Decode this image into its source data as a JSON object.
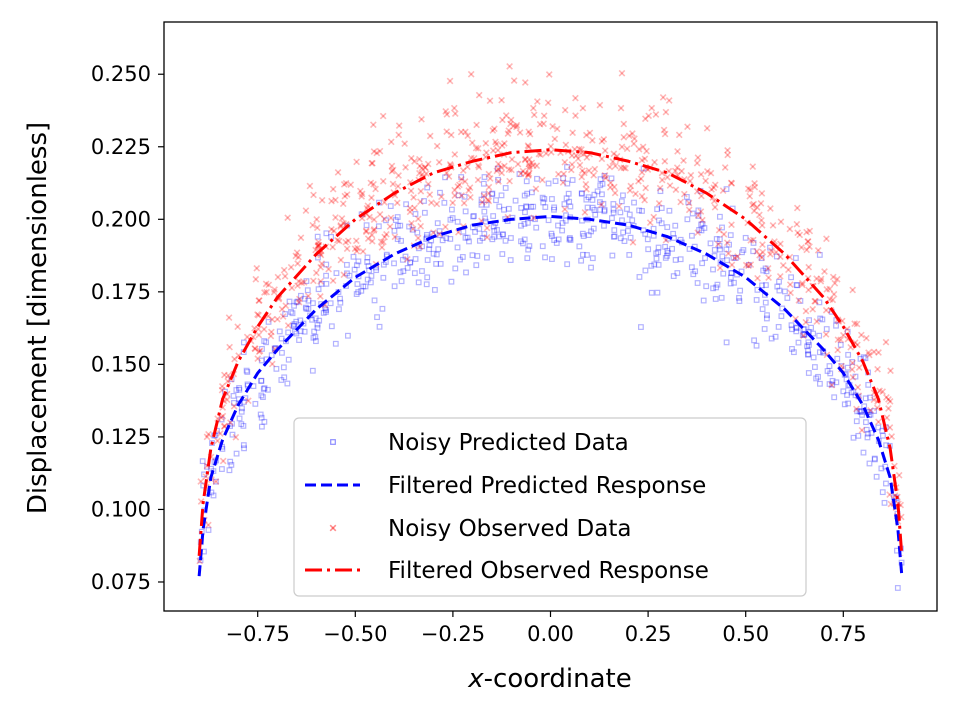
{
  "chart_data": {
    "type": "scatter",
    "title": "",
    "xlabel_italic": "x",
    "xlabel_rest": "-coordinate",
    "ylabel": "Displacement [dimensionless]",
    "xlim": [
      -0.99,
      0.99
    ],
    "ylim": [
      0.065,
      0.268
    ],
    "x_ticks": [
      -0.75,
      -0.5,
      -0.25,
      0.0,
      0.25,
      0.5,
      0.75
    ],
    "x_tick_labels": [
      "−0.75",
      "−0.50",
      "−0.25",
      "0.00",
      "0.25",
      "0.50",
      "0.75"
    ],
    "y_ticks": [
      0.075,
      0.1,
      0.125,
      0.15,
      0.175,
      0.2,
      0.225,
      0.25
    ],
    "y_tick_labels": [
      "0.075",
      "0.100",
      "0.125",
      "0.150",
      "0.175",
      "0.200",
      "0.225",
      "0.250"
    ],
    "grid": false,
    "legend_position": "lower-center",
    "series": [
      {
        "name": "Noisy Predicted Data",
        "kind": "scatter",
        "marker": "s",
        "color": "#0000ff",
        "alpha": 0.3,
        "curve": {
          "x_min": -0.9,
          "x_max": 0.9,
          "peak": 0.201,
          "end": 0.077
        },
        "noise_std": 0.009,
        "n_points": 700,
        "seed": 11
      },
      {
        "name": "Filtered Predicted Response",
        "kind": "line",
        "style": "dashed",
        "color": "#0000ff",
        "x": [
          -0.9,
          -0.89,
          -0.87,
          -0.84,
          -0.8,
          -0.75,
          -0.7,
          -0.6,
          -0.5,
          -0.4,
          -0.3,
          -0.2,
          -0.1,
          0.0,
          0.1,
          0.2,
          0.3,
          0.4,
          0.5,
          0.6,
          0.7,
          0.75,
          0.8,
          0.84,
          0.87,
          0.89,
          0.9
        ],
        "y": [
          0.077,
          0.093,
          0.111,
          0.124,
          0.136,
          0.147,
          0.155,
          0.169,
          0.18,
          0.188,
          0.194,
          0.198,
          0.2,
          0.201,
          0.2,
          0.198,
          0.194,
          0.188,
          0.18,
          0.169,
          0.155,
          0.147,
          0.136,
          0.124,
          0.111,
          0.093,
          0.077
        ]
      },
      {
        "name": "Noisy Observed Data",
        "kind": "scatter",
        "marker": "x",
        "color": "#ff0000",
        "alpha": 0.28,
        "curve": {
          "x_min": -0.9,
          "x_max": 0.9,
          "peak": 0.224,
          "end": 0.084
        },
        "noise_std": 0.011,
        "n_points": 700,
        "seed": 29
      },
      {
        "name": "Filtered Observed Response",
        "kind": "line",
        "style": "dashdot",
        "color": "#ff0000",
        "x": [
          -0.9,
          -0.89,
          -0.87,
          -0.84,
          -0.8,
          -0.75,
          -0.7,
          -0.6,
          -0.5,
          -0.4,
          -0.3,
          -0.2,
          -0.1,
          0.0,
          0.1,
          0.2,
          0.3,
          0.4,
          0.5,
          0.6,
          0.7,
          0.75,
          0.8,
          0.84,
          0.87,
          0.89,
          0.9
        ],
        "y": [
          0.084,
          0.102,
          0.121,
          0.138,
          0.151,
          0.163,
          0.173,
          0.188,
          0.2,
          0.209,
          0.216,
          0.22,
          0.223,
          0.224,
          0.223,
          0.22,
          0.216,
          0.209,
          0.2,
          0.188,
          0.173,
          0.163,
          0.151,
          0.138,
          0.121,
          0.102,
          0.084
        ]
      }
    ]
  }
}
